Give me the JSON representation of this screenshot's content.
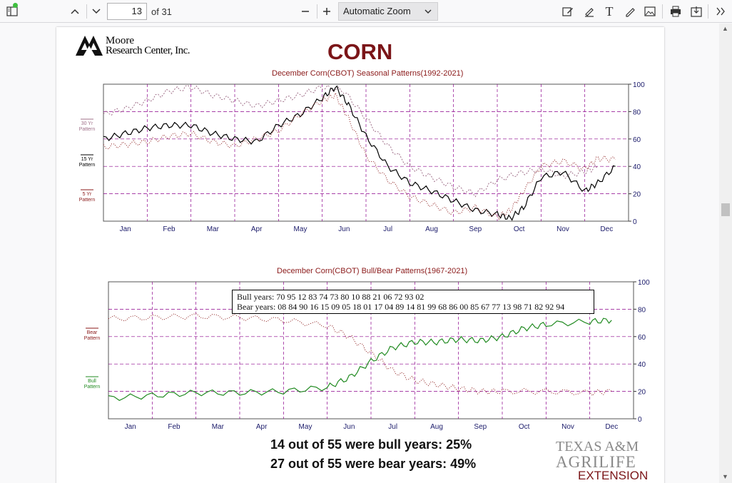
{
  "toolbar": {
    "page_number": "13",
    "page_count": "of 31",
    "zoom": "Automatic Zoom"
  },
  "document": {
    "logo_line1": "Moore",
    "logo_line2": "Research Center, Inc.",
    "title": "CORN",
    "stat_bull": "14 out of 55 were bull years: 25%",
    "stat_bear": "27 out of 55 were bear years: 49%",
    "agrilife_line1": "TEXAS A&M",
    "agrilife_line2": "AGRILIFE",
    "agrilife_line3": "EXTENSION",
    "colors": {
      "title": "#7b1518",
      "agrilife_red": "#7b1518",
      "grid": "#8b008b"
    }
  },
  "chart_data": [
    {
      "type": "line",
      "title": "December Corn(CBOT) Seasonal Patterns(1992-2021)",
      "categories": [
        "Jan",
        "Feb",
        "Mar",
        "Apr",
        "May",
        "Jun",
        "Jul",
        "Aug",
        "Sep",
        "Oct",
        "Nov",
        "Dec"
      ],
      "ylim": [
        0,
        100
      ],
      "yticks": [
        0,
        20,
        40,
        60,
        80,
        100
      ],
      "side_labels": [
        "30 Yr Pattern",
        "15 Yr Pattern",
        "5 Yr Pattern"
      ],
      "series": [
        {
          "name": "30 Yr Pattern",
          "color": "#a0708a",
          "dash": "2,2",
          "values": [
            [
              0,
              78
            ],
            [
              0.5,
              82
            ],
            [
              1,
              88
            ],
            [
              1.5,
              95
            ],
            [
              2,
              98
            ],
            [
              2.5,
              92
            ],
            [
              3,
              88
            ],
            [
              3.5,
              84
            ],
            [
              4,
              88
            ],
            [
              4.5,
              92
            ],
            [
              5,
              98
            ],
            [
              5.5,
              95
            ],
            [
              6,
              75
            ],
            [
              6.5,
              55
            ],
            [
              7,
              40
            ],
            [
              7.5,
              32
            ],
            [
              8,
              25
            ],
            [
              8.5,
              20
            ],
            [
              9,
              30
            ],
            [
              9.5,
              35
            ],
            [
              10,
              38
            ],
            [
              10.5,
              33
            ],
            [
              11,
              36
            ],
            [
              11.3,
              40
            ]
          ]
        },
        {
          "name": "15 Yr Pattern",
          "color": "#000000",
          "dash": "",
          "values": [
            [
              0,
              60
            ],
            [
              0.5,
              64
            ],
            [
              1,
              68
            ],
            [
              1.5,
              70
            ],
            [
              2,
              70
            ],
            [
              2.5,
              64
            ],
            [
              3,
              60
            ],
            [
              3.5,
              58
            ],
            [
              4,
              70
            ],
            [
              4.5,
              78
            ],
            [
              5,
              90
            ],
            [
              5.3,
              98
            ],
            [
              5.6,
              85
            ],
            [
              6,
              62
            ],
            [
              6.5,
              40
            ],
            [
              7,
              28
            ],
            [
              7.5,
              22
            ],
            [
              8,
              15
            ],
            [
              8.5,
              8
            ],
            [
              9,
              5
            ],
            [
              9.3,
              2
            ],
            [
              9.6,
              10
            ],
            [
              10,
              32
            ],
            [
              10.5,
              36
            ],
            [
              11,
              22
            ],
            [
              11.3,
              28
            ],
            [
              11.7,
              40
            ]
          ]
        },
        {
          "name": "5 Yr Pattern",
          "color": "#8b1a1a",
          "dash": "1,2",
          "values": [
            [
              0,
              54
            ],
            [
              0.5,
              56
            ],
            [
              1,
              58
            ],
            [
              1.5,
              62
            ],
            [
              2,
              64
            ],
            [
              2.5,
              58
            ],
            [
              3,
              55
            ],
            [
              3.5,
              60
            ],
            [
              4,
              66
            ],
            [
              4.5,
              78
            ],
            [
              5,
              88
            ],
            [
              5.3,
              92
            ],
            [
              5.6,
              75
            ],
            [
              6,
              48
            ],
            [
              6.5,
              30
            ],
            [
              7,
              18
            ],
            [
              7.5,
              12
            ],
            [
              8,
              6
            ],
            [
              8.5,
              10
            ],
            [
              9,
              3
            ],
            [
              9.3,
              8
            ],
            [
              9.6,
              22
            ],
            [
              10,
              40
            ],
            [
              10.5,
              44
            ],
            [
              11,
              38
            ],
            [
              11.3,
              46
            ],
            [
              11.7,
              45
            ]
          ]
        }
      ]
    },
    {
      "type": "line",
      "title": "December Corn(CBOT) Bull/Bear Patterns(1967-2021)",
      "categories": [
        "Jan",
        "Feb",
        "Mar",
        "Apr",
        "May",
        "Jun",
        "Jul",
        "Aug",
        "Sep",
        "Oct",
        "Nov",
        "Dec"
      ],
      "ylim": [
        0,
        100
      ],
      "yticks": [
        0,
        20,
        40,
        60,
        80,
        100
      ],
      "side_labels": [
        "Bear Pattern",
        "Bull Pattern"
      ],
      "legend": {
        "bull_years": "Bull years: 70 95 12 83 74 73 80 10 88 21 06 72 93 02",
        "bear_years": "Bear years: 08 84 90 16 15 09 05 18 01 17 04 89 14 81 99 68 86 00 85 67 77 13 98 71 82 92 94"
      },
      "series": [
        {
          "name": "Bear Pattern",
          "color": "#8b1a1a",
          "dash": "1,2",
          "values": [
            [
              0,
              73
            ],
            [
              1,
              74
            ],
            [
              2,
              75
            ],
            [
              3,
              74
            ],
            [
              4,
              72
            ],
            [
              5,
              68
            ],
            [
              5.5,
              60
            ],
            [
              6,
              48
            ],
            [
              6.5,
              35
            ],
            [
              7,
              28
            ],
            [
              7.5,
              25
            ],
            [
              8,
              22
            ],
            [
              8.5,
              20
            ],
            [
              9,
              20
            ],
            [
              10,
              20
            ],
            [
              11,
              19
            ],
            [
              11.5,
              20
            ]
          ]
        },
        {
          "name": "Bull Pattern",
          "color": "#228b22",
          "dash": "",
          "values": [
            [
              0,
              15
            ],
            [
              1,
              17
            ],
            [
              2,
              19
            ],
            [
              3,
              19
            ],
            [
              4,
              20
            ],
            [
              5,
              23
            ],
            [
              5.5,
              30
            ],
            [
              6,
              42
            ],
            [
              6.5,
              52
            ],
            [
              7,
              56
            ],
            [
              7.5,
              56
            ],
            [
              8,
              58
            ],
            [
              8.5,
              57
            ],
            [
              9,
              60
            ],
            [
              9.5,
              66
            ],
            [
              10,
              69
            ],
            [
              11,
              71
            ],
            [
              11.5,
              72
            ]
          ]
        }
      ]
    }
  ]
}
